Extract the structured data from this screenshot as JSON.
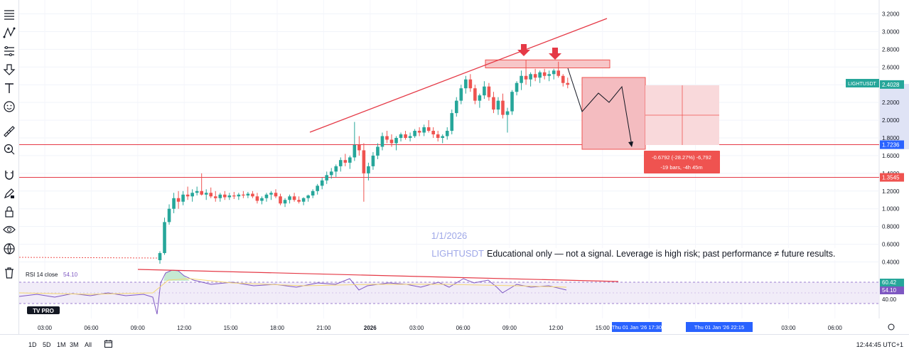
{
  "symbol": "LIGHTUSDT",
  "watermark": {
    "date": "1/1/2026",
    "symbol_line": "LIGHTUSDT · 15"
  },
  "disclaimer": "Educational only — not a signal. Leverage is high risk; past performance ≠ future results.",
  "price_labels": {
    "last_price": "2.4028",
    "support_1": "1.7236",
    "support_2": "1.3545"
  },
  "measure_box": {
    "line1": "-0.6792 (-28.27%) -6,792",
    "line2": "-19 bars, -4h 45m"
  },
  "time_tags": [
    "Thu 01 Jan '26   17:30",
    "Thu 01 Jan '26   22:15"
  ],
  "rsi": {
    "label": "RSI 14 close",
    "value": "54.10",
    "level_high": "60.42",
    "level_low": "40.00"
  },
  "logo": "TV PRO",
  "toolbar_icons": [
    "menu-lines-icon",
    "pattern-icon",
    "fib-icon",
    "arrow-down-icon",
    "text-icon",
    "smile-icon",
    "ruler-icon",
    "zoom-icon",
    "magnet-icon",
    "pencil-lock-icon",
    "lock-icon",
    "eye-icon",
    "globe-icon",
    "trash-icon"
  ],
  "bottom_bar": {
    "ranges": [
      "1D",
      "5D",
      "1M",
      "3M",
      "All"
    ],
    "clock": "12:44:45 UTC+1"
  },
  "colors": {
    "up": "#26a69a",
    "down": "#ef5350",
    "accent_line": "#e53946",
    "rsi": "#7e57c2",
    "axis_text": "#131722"
  },
  "chart_data": {
    "type": "candlestick",
    "y_axis": {
      "ticks": [
        "3.2000",
        "3.0000",
        "2.8000",
        "2.6000",
        "2.4000",
        "2.2000",
        "2.0000",
        "1.8000",
        "1.6000",
        "1.4000",
        "1.2000",
        "1.0000",
        "0.8000",
        "0.6000",
        "0.4000"
      ],
      "range": [
        0.35,
        3.25
      ]
    },
    "x_axis": {
      "ticks": [
        "03:00",
        "06:00",
        "09:00",
        "12:00",
        "15:00",
        "18:00",
        "21:00",
        "2026",
        "03:00",
        "06:00",
        "09:00",
        "12:00",
        "15:00",
        "18:00",
        "21:00",
        "00:00",
        "03:00",
        "06:00"
      ]
    },
    "horizontal_levels": [
      1.7236,
      1.3545
    ],
    "resistance_zone": [
      2.59,
      2.68
    ],
    "ohlc": [
      [
        0.42,
        0.52,
        0.38,
        0.5
      ],
      [
        0.5,
        0.9,
        0.48,
        0.85
      ],
      [
        0.85,
        1.05,
        0.82,
        1.0
      ],
      [
        1.0,
        1.18,
        0.95,
        1.12
      ],
      [
        1.12,
        1.2,
        1.0,
        1.08
      ],
      [
        1.08,
        1.2,
        1.04,
        1.16
      ],
      [
        1.16,
        1.25,
        1.1,
        1.14
      ],
      [
        1.14,
        1.22,
        1.08,
        1.18
      ],
      [
        1.18,
        1.25,
        1.15,
        1.2
      ],
      [
        1.2,
        1.4,
        1.15,
        1.16
      ],
      [
        1.16,
        1.22,
        1.1,
        1.18
      ],
      [
        1.18,
        1.24,
        1.12,
        1.14
      ],
      [
        1.14,
        1.2,
        1.08,
        1.12
      ],
      [
        1.12,
        1.18,
        1.08,
        1.16
      ],
      [
        1.16,
        1.2,
        1.1,
        1.13
      ],
      [
        1.13,
        1.18,
        1.1,
        1.15
      ],
      [
        1.15,
        1.19,
        1.11,
        1.14
      ],
      [
        1.14,
        1.18,
        1.1,
        1.16
      ],
      [
        1.16,
        1.2,
        1.12,
        1.15
      ],
      [
        1.15,
        1.19,
        1.12,
        1.17
      ],
      [
        1.17,
        1.2,
        1.12,
        1.14
      ],
      [
        1.14,
        1.18,
        1.06,
        1.09
      ],
      [
        1.09,
        1.14,
        1.05,
        1.12
      ],
      [
        1.12,
        1.18,
        1.08,
        1.16
      ],
      [
        1.16,
        1.2,
        1.1,
        1.18
      ],
      [
        1.18,
        1.22,
        1.12,
        1.14
      ],
      [
        1.14,
        1.17,
        1.04,
        1.06
      ],
      [
        1.06,
        1.12,
        1.02,
        1.1
      ],
      [
        1.1,
        1.16,
        1.06,
        1.14
      ],
      [
        1.14,
        1.18,
        1.08,
        1.1
      ],
      [
        1.1,
        1.14,
        1.06,
        1.08
      ],
      [
        1.08,
        1.13,
        1.04,
        1.12
      ],
      [
        1.12,
        1.16,
        1.08,
        1.15
      ],
      [
        1.15,
        1.22,
        1.12,
        1.2
      ],
      [
        1.2,
        1.28,
        1.16,
        1.26
      ],
      [
        1.26,
        1.35,
        1.22,
        1.32
      ],
      [
        1.32,
        1.42,
        1.28,
        1.38
      ],
      [
        1.38,
        1.46,
        1.34,
        1.42
      ],
      [
        1.42,
        1.5,
        1.36,
        1.48
      ],
      [
        1.48,
        1.58,
        1.42,
        1.55
      ],
      [
        1.55,
        1.62,
        1.48,
        1.52
      ],
      [
        1.52,
        1.6,
        1.45,
        1.58
      ],
      [
        1.58,
        1.98,
        1.54,
        1.72
      ],
      [
        1.72,
        1.82,
        1.6,
        1.66
      ],
      [
        1.66,
        1.74,
        1.08,
        1.4
      ],
      [
        1.4,
        1.52,
        1.32,
        1.48
      ],
      [
        1.48,
        1.64,
        1.44,
        1.6
      ],
      [
        1.6,
        1.74,
        1.56,
        1.7
      ],
      [
        1.7,
        1.86,
        1.66,
        1.82
      ],
      [
        1.82,
        1.88,
        1.74,
        1.78
      ],
      [
        1.78,
        1.84,
        1.7,
        1.74
      ],
      [
        1.74,
        1.82,
        1.66,
        1.8
      ],
      [
        1.8,
        1.86,
        1.76,
        1.84
      ],
      [
        1.84,
        1.88,
        1.78,
        1.8
      ],
      [
        1.8,
        1.86,
        1.76,
        1.82
      ],
      [
        1.82,
        1.9,
        1.8,
        1.88
      ],
      [
        1.88,
        1.92,
        1.82,
        1.86
      ],
      [
        1.86,
        1.95,
        1.82,
        1.92
      ],
      [
        1.92,
        2.0,
        1.86,
        1.88
      ],
      [
        1.88,
        1.92,
        1.8,
        1.84
      ],
      [
        1.84,
        1.88,
        1.76,
        1.8
      ],
      [
        1.8,
        1.84,
        1.74,
        1.82
      ],
      [
        1.82,
        1.92,
        1.78,
        1.88
      ],
      [
        1.88,
        2.12,
        1.84,
        2.08
      ],
      [
        2.08,
        2.26,
        2.04,
        2.22
      ],
      [
        2.22,
        2.4,
        2.18,
        2.36
      ],
      [
        2.36,
        2.5,
        2.3,
        2.46
      ],
      [
        2.46,
        2.52,
        2.32,
        2.36
      ],
      [
        2.36,
        2.4,
        2.18,
        2.22
      ],
      [
        2.22,
        2.3,
        2.14,
        2.28
      ],
      [
        2.28,
        2.44,
        2.24,
        2.38
      ],
      [
        2.38,
        2.42,
        2.22,
        2.26
      ],
      [
        2.26,
        2.32,
        2.08,
        2.12
      ],
      [
        2.12,
        2.26,
        2.06,
        2.22
      ],
      [
        2.22,
        2.3,
        2.02,
        2.06
      ],
      [
        2.06,
        2.14,
        1.86,
        2.1
      ],
      [
        2.1,
        2.34,
        2.06,
        2.32
      ],
      [
        2.32,
        2.44,
        2.28,
        2.42
      ],
      [
        2.42,
        2.56,
        2.34,
        2.5
      ],
      [
        2.5,
        2.68,
        2.4,
        2.46
      ],
      [
        2.46,
        2.54,
        2.38,
        2.52
      ],
      [
        2.52,
        2.58,
        2.44,
        2.48
      ],
      [
        2.48,
        2.56,
        2.42,
        2.54
      ],
      [
        2.54,
        2.58,
        2.46,
        2.5
      ],
      [
        2.5,
        2.56,
        2.44,
        2.52
      ],
      [
        2.52,
        2.58,
        2.46,
        2.56
      ],
      [
        2.56,
        2.66,
        2.48,
        2.5
      ],
      [
        2.5,
        2.52,
        2.38,
        2.42
      ],
      [
        2.42,
        2.48,
        2.36,
        2.4
      ]
    ]
  }
}
